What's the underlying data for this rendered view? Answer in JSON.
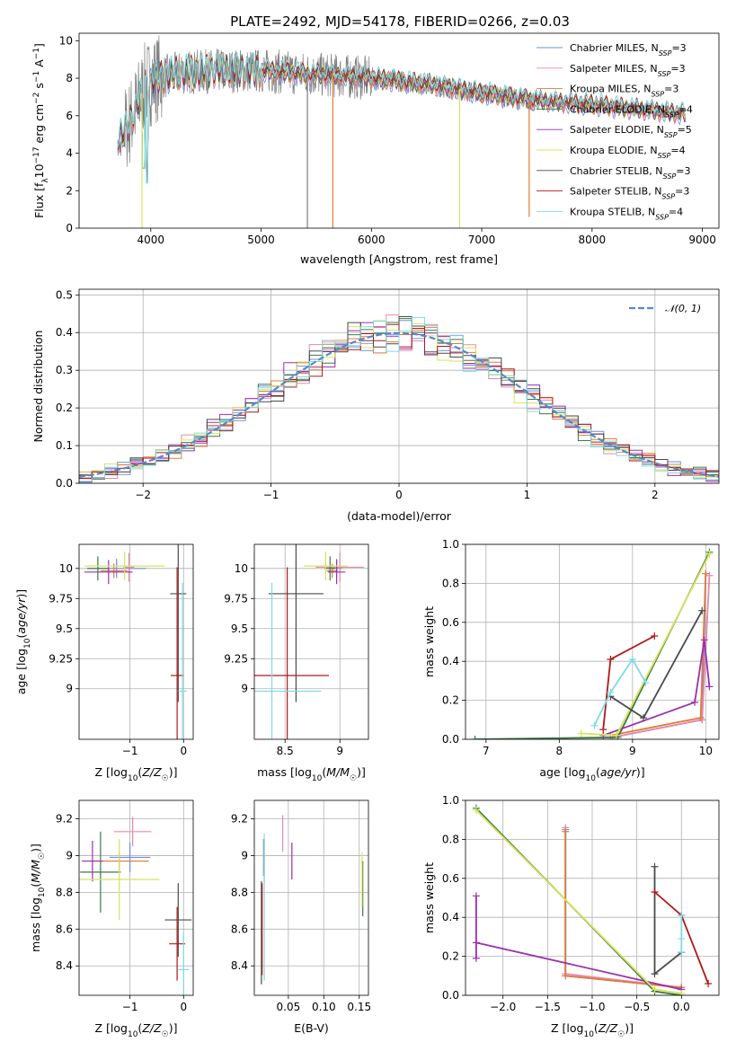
{
  "figure_title": "PLATE=2492, MJD=54178, FIBERID=0266, z=0.03",
  "colors": {
    "Chabrier MILES": "#6b8fe6",
    "Salpeter MILES": "#e88aa8",
    "Kroupa MILES": "#e07b39",
    "Chabrier ELODIE": "#3c7a47",
    "Salpeter ELODIE": "#9a2fb0",
    "Kroupa ELODIE": "#d7e45a",
    "Chabrier STELIB": "#4a4a4a",
    "Salpeter STELIB": "#b01818",
    "Kroupa STELIB": "#7edbe0",
    "data": "#808080",
    "normal": "#5588cc"
  },
  "chart_data": [
    {
      "type": "line",
      "title": "",
      "xlabel": "wavelength [Angstrom, rest frame]",
      "ylabel": "Flux [f_λ 10^-17 erg cm^-2 s^-1 A^-1]",
      "xlim": [
        3350,
        9150
      ],
      "ylim": [
        0,
        10.4
      ],
      "xticks": [
        4000,
        5000,
        6000,
        7000,
        8000,
        9000
      ],
      "yticks": [
        0,
        2,
        4,
        6,
        8,
        10
      ],
      "grid": false,
      "legend": "top-right",
      "x_range": [
        3700,
        8850
      ],
      "continuum": {
        "x": [
          3700,
          3800,
          3950,
          4050,
          4300,
          4600,
          5000,
          5500,
          6000,
          6500,
          7000,
          7500,
          8000,
          8500,
          8850
        ],
        "y": [
          4.8,
          5.5,
          7.6,
          8.0,
          8.3,
          8.4,
          8.4,
          8.2,
          8.0,
          7.7,
          7.2,
          6.8,
          6.6,
          6.3,
          6.1
        ]
      },
      "series": [
        {
          "label": "Chabrier MILES",
          "nssp": "3"
        },
        {
          "label": "Salpeter MILES",
          "nssp": "3"
        },
        {
          "label": "Kroupa MILES",
          "nssp": "3"
        },
        {
          "label": "Chabrier ELODIE",
          "nssp": "4"
        },
        {
          "label": "Salpeter ELODIE",
          "nssp": "5"
        },
        {
          "label": "Kroupa ELODIE",
          "nssp": "4"
        },
        {
          "label": "Chabrier STELIB",
          "nssp": "3"
        },
        {
          "label": "Salpeter STELIB",
          "nssp": "3"
        },
        {
          "label": "Kroupa STELIB",
          "nssp": "4"
        }
      ],
      "dropouts": [
        {
          "x": 5650,
          "y": 0,
          "series": "Kroupa MILES"
        },
        {
          "x": 6800,
          "y": 0,
          "series": "Kroupa ELODIE"
        },
        {
          "x": 7430,
          "y": 0.6,
          "series": "Kroupa MILES"
        },
        {
          "x": 3920,
          "y": 0,
          "series": "Kroupa ELODIE"
        },
        {
          "x": 5420,
          "y": 0,
          "series": "data"
        }
      ]
    },
    {
      "type": "line",
      "title": "",
      "xlabel": "(data-model)/error",
      "ylabel": "Normed distribution",
      "xlim": [
        -2.5,
        2.5
      ],
      "ylim": [
        0,
        0.515
      ],
      "xticks": [
        -2,
        -1,
        0,
        1,
        2
      ],
      "yticks": [
        0.0,
        0.1,
        0.2,
        0.3,
        0.4,
        0.5
      ],
      "grid": true,
      "legend": "top-right",
      "legend_label": "𝒩(0, 1)",
      "bin_width": 0.1,
      "bins_from": -2.5,
      "bins_to": 2.5,
      "curve": "standard normal"
    },
    {
      "type": "scatter",
      "title": "",
      "xlabel": "Z [log10(Z/Z☉)]",
      "ylabel": "age  [log10(age/yr)]",
      "xlim": [
        -1.95,
        0.18
      ],
      "ylim": [
        8.58,
        10.2
      ],
      "xticks": [
        -1,
        0
      ],
      "yticks": [
        9.0,
        9.25,
        9.5,
        9.75,
        10.0
      ],
      "grid": true,
      "points": [
        {
          "series": "Chabrier MILES",
          "x": -1.25,
          "y": 10.0,
          "xerr": 0.55,
          "yerr": 0.08
        },
        {
          "series": "Salpeter MILES",
          "x": -1.02,
          "y": 10.01,
          "xerr": 0.1,
          "yerr": 0.12
        },
        {
          "series": "Kroupa MILES",
          "x": -1.3,
          "y": 9.98,
          "xerr": 0.25,
          "yerr": 0.06
        },
        {
          "series": "Chabrier ELODIE",
          "x": -1.6,
          "y": 10.0,
          "xerr": 0.2,
          "yerr": 0.1
        },
        {
          "series": "Salpeter ELODIE",
          "x": -1.4,
          "y": 9.97,
          "xerr": 0.45,
          "yerr": 0.1
        },
        {
          "series": "Kroupa ELODIE",
          "x": -1.1,
          "y": 10.02,
          "xerr": 0.75,
          "yerr": 0.12
        },
        {
          "series": "Chabrier STELIB",
          "x": -0.1,
          "y": 9.79,
          "xerr": 0.15,
          "yerr": 0.9
        },
        {
          "series": "Salpeter STELIB",
          "x": -0.12,
          "y": 9.11,
          "xerr": 0.12,
          "yerr": 0.9
        },
        {
          "series": "Kroupa STELIB",
          "x": -0.02,
          "y": 8.98,
          "xerr": 0.08,
          "yerr": 0.9
        }
      ]
    },
    {
      "type": "scatter",
      "title": "",
      "xlabel": "mass [log10(M/M☉)]",
      "ylabel": "",
      "xlim": [
        8.22,
        9.26
      ],
      "ylim": [
        8.58,
        10.2
      ],
      "xticks": [
        8.5,
        9.0
      ],
      "yticks": [
        9.0,
        9.25,
        9.5,
        9.75,
        10.0
      ],
      "grid": true,
      "points": [
        {
          "series": "Chabrier MILES",
          "x": 8.97,
          "y": 10.0,
          "xerr": 0.05,
          "yerr": 0.08
        },
        {
          "series": "Salpeter MILES",
          "x": 9.0,
          "y": 10.01,
          "xerr": 0.22,
          "yerr": 0.12
        },
        {
          "series": "Kroupa MILES",
          "x": 8.93,
          "y": 9.98,
          "xerr": 0.05,
          "yerr": 0.06
        },
        {
          "series": "Chabrier ELODIE",
          "x": 8.91,
          "y": 10.0,
          "xerr": 0.05,
          "yerr": 0.1
        },
        {
          "series": "Salpeter ELODIE",
          "x": 8.97,
          "y": 9.97,
          "xerr": 0.08,
          "yerr": 0.1
        },
        {
          "series": "Kroupa ELODIE",
          "x": 8.87,
          "y": 10.02,
          "xerr": 0.2,
          "yerr": 0.12
        },
        {
          "series": "Chabrier STELIB",
          "x": 8.6,
          "y": 9.79,
          "xerr": 0.25,
          "yerr": 0.9
        },
        {
          "series": "Salpeter STELIB",
          "x": 8.52,
          "y": 9.11,
          "xerr": 0.38,
          "yerr": 0.9
        },
        {
          "series": "Kroupa STELIB",
          "x": 8.38,
          "y": 8.98,
          "xerr": 0.45,
          "yerr": 0.9
        }
      ]
    },
    {
      "type": "line",
      "title": "",
      "xlabel": "age  [log10(age/yr)]",
      "ylabel": "mass weight",
      "xlim": [
        6.72,
        10.18
      ],
      "ylim": [
        0,
        1.0
      ],
      "xticks": [
        7,
        8,
        9,
        10
      ],
      "yticks": [
        0.0,
        0.2,
        0.4,
        0.6,
        0.8,
        1.0
      ],
      "grid": true,
      "series": [
        {
          "name": "Chabrier MILES",
          "x": [
            8.73,
            9.95,
            10.0
          ],
          "y": [
            0.01,
            0.1,
            0.85
          ]
        },
        {
          "name": "Salpeter MILES",
          "x": [
            8.73,
            9.95,
            10.05
          ],
          "y": [
            0.01,
            0.1,
            0.84
          ]
        },
        {
          "name": "Kroupa MILES",
          "x": [
            8.7,
            9.93,
            10.0
          ],
          "y": [
            0.02,
            0.11,
            0.85
          ]
        },
        {
          "name": "Chabrier ELODIE",
          "x": [
            6.85,
            8.8,
            10.05
          ],
          "y": [
            0.0,
            0.01,
            0.96
          ]
        },
        {
          "name": "Salpeter ELODIE",
          "x": [
            8.6,
            9.85,
            9.98,
            10.05
          ],
          "y": [
            0.02,
            0.19,
            0.51,
            0.27
          ]
        },
        {
          "name": "Kroupa ELODIE",
          "x": [
            8.3,
            8.78,
            10.05
          ],
          "y": [
            0.03,
            0.02,
            0.95
          ]
        },
        {
          "name": "Chabrier STELIB",
          "x": [
            8.7,
            9.15,
            9.95
          ],
          "y": [
            0.22,
            0.11,
            0.66
          ]
        },
        {
          "name": "Salpeter STELIB",
          "x": [
            8.6,
            8.7,
            9.3
          ],
          "y": [
            0.05,
            0.41,
            0.53
          ]
        },
        {
          "name": "Kroupa STELIB",
          "x": [
            8.48,
            8.7,
            9.0,
            9.18
          ],
          "y": [
            0.07,
            0.24,
            0.41,
            0.29
          ]
        }
      ]
    },
    {
      "type": "scatter",
      "title": "",
      "xlabel": "Z [log10(Z/Z☉)]",
      "ylabel": "mass [log10(M/M☉)]",
      "xlim": [
        -1.95,
        0.18
      ],
      "ylim": [
        8.24,
        9.3
      ],
      "xticks": [
        -1,
        0
      ],
      "yticks": [
        8.4,
        8.6,
        8.8,
        9.0,
        9.2
      ],
      "grid": true,
      "points": [
        {
          "series": "Chabrier MILES",
          "x": -1.0,
          "y": 8.99,
          "xerr": 0.38,
          "yerr": 0.08
        },
        {
          "series": "Salpeter MILES",
          "x": -0.95,
          "y": 9.13,
          "xerr": 0.35,
          "yerr": 0.08
        },
        {
          "series": "Kroupa MILES",
          "x": -1.2,
          "y": 8.97,
          "xerr": 0.55,
          "yerr": 0.05
        },
        {
          "series": "Chabrier ELODIE",
          "x": -1.55,
          "y": 8.91,
          "xerr": 0.38,
          "yerr": 0.22
        },
        {
          "series": "Salpeter ELODIE",
          "x": -1.7,
          "y": 8.97,
          "xerr": 0.2,
          "yerr": 0.11
        },
        {
          "series": "Kroupa ELODIE",
          "x": -1.2,
          "y": 8.87,
          "xerr": 0.75,
          "yerr": 0.22
        },
        {
          "series": "Chabrier STELIB",
          "x": -0.1,
          "y": 8.65,
          "xerr": 0.25,
          "yerr": 0.2
        },
        {
          "series": "Salpeter STELIB",
          "x": -0.12,
          "y": 8.52,
          "xerr": 0.15,
          "yerr": 0.2
        },
        {
          "series": "Kroupa STELIB",
          "x": 0.0,
          "y": 8.38,
          "xerr": 0.1,
          "yerr": 0.2
        }
      ]
    },
    {
      "type": "scatter",
      "title": "",
      "xlabel": "E(B-V)",
      "ylabel": "",
      "xlim": [
        0.002,
        0.163
      ],
      "ylim": [
        8.24,
        9.3
      ],
      "xticks": [
        0.05,
        0.1,
        0.15
      ],
      "xtick_labels": [
        "0.05",
        "0.10",
        "0.15"
      ],
      "yticks": [
        8.4,
        8.6,
        8.8,
        9.0,
        9.2
      ],
      "grid": true,
      "points": [
        {
          "series": "Chabrier MILES",
          "x": 0.015,
          "y": 8.99,
          "xerr": 0,
          "yerr": 0.1
        },
        {
          "series": "Salpeter MILES",
          "x": 0.042,
          "y": 9.12,
          "xerr": 0,
          "yerr": 0.1
        },
        {
          "series": "Kroupa MILES",
          "x": 0.016,
          "y": 8.97,
          "xerr": 0,
          "yerr": 0.12
        },
        {
          "series": "Chabrier ELODIE",
          "x": 0.155,
          "y": 8.82,
          "xerr": 0,
          "yerr": 0.15
        },
        {
          "series": "Salpeter ELODIE",
          "x": 0.055,
          "y": 8.97,
          "xerr": 0,
          "yerr": 0.1
        },
        {
          "series": "Kroupa ELODIE",
          "x": 0.154,
          "y": 8.87,
          "xerr": 0,
          "yerr": 0.15
        },
        {
          "series": "Chabrier STELIB",
          "x": 0.012,
          "y": 8.58,
          "xerr": 0,
          "yerr": 0.28
        },
        {
          "series": "Salpeter STELIB",
          "x": 0.013,
          "y": 8.6,
          "xerr": 0,
          "yerr": 0.25
        },
        {
          "series": "Kroupa STELIB",
          "x": 0.016,
          "y": 8.72,
          "xerr": 0,
          "yerr": 0.4
        }
      ]
    },
    {
      "type": "line",
      "title": "",
      "xlabel": "Z [log10(Z/Z☉)]",
      "ylabel": "mass weight",
      "xlim": [
        -2.42,
        0.42
      ],
      "ylim": [
        0,
        1.0
      ],
      "xticks": [
        -2.0,
        -1.5,
        -1.0,
        -0.5,
        0.0
      ],
      "xtick_labels": [
        "−2.0",
        "−1.5",
        "−1.0",
        "−0.5",
        "0.0"
      ],
      "yticks": [
        0.0,
        0.2,
        0.4,
        0.6,
        0.8,
        1.0
      ],
      "grid": true,
      "series": [
        {
          "name": "Chabrier MILES",
          "x": [
            -1.3,
            -1.3,
            0.0
          ],
          "y": [
            0.85,
            0.1,
            0.04
          ]
        },
        {
          "name": "Salpeter MILES",
          "x": [
            -1.3,
            -1.3,
            0.0
          ],
          "y": [
            0.86,
            0.11,
            0.04
          ]
        },
        {
          "name": "Kroupa MILES",
          "x": [
            -1.3,
            -1.3,
            0.0
          ],
          "y": [
            0.84,
            0.1,
            0.04
          ]
        },
        {
          "name": "Chabrier ELODIE",
          "x": [
            -2.3,
            -0.3,
            0.0
          ],
          "y": [
            0.96,
            0.02,
            0.0
          ]
        },
        {
          "name": "Salpeter ELODIE",
          "x": [
            -2.3,
            -2.3,
            -2.3,
            0.0
          ],
          "y": [
            0.51,
            0.19,
            0.27,
            0.03
          ]
        },
        {
          "name": "Kroupa ELODIE",
          "x": [
            -2.3,
            -0.3,
            0.0
          ],
          "y": [
            0.95,
            0.03,
            0.01
          ]
        },
        {
          "name": "Chabrier STELIB",
          "x": [
            -0.3,
            -0.3,
            0.0
          ],
          "y": [
            0.66,
            0.11,
            0.22
          ]
        },
        {
          "name": "Salpeter STELIB",
          "x": [
            -0.3,
            0.0,
            0.3
          ],
          "y": [
            0.53,
            0.41,
            0.06
          ]
        },
        {
          "name": "Kroupa STELIB",
          "x": [
            0.0,
            0.0,
            0.0
          ],
          "y": [
            0.41,
            0.22,
            0.29
          ]
        }
      ]
    }
  ]
}
